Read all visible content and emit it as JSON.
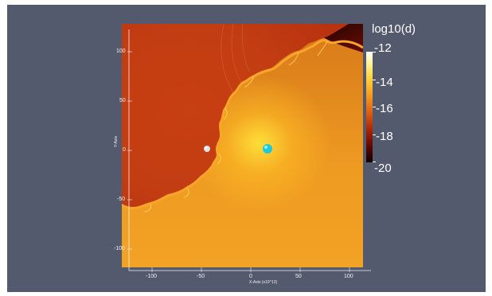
{
  "colors": {
    "viewport_background": "#535a6e",
    "annotation_text": "#f2f2f2",
    "secondary_object": "#dfe2e8",
    "primary_object": "#1ec9da"
  },
  "plot": {
    "x_axis": {
      "title": "X-Axis (x10^12)",
      "ticks": [
        "-100",
        "-50",
        "0",
        "50",
        "100"
      ]
    },
    "y_axis": {
      "title": "Y-Axis",
      "ticks": [
        "100",
        "50",
        "0",
        "-50",
        "-100"
      ]
    }
  },
  "colorbar": {
    "title": "log10(d)",
    "labels": [
      "-12",
      "-14",
      "-16",
      "-18",
      "-20"
    ]
  }
}
